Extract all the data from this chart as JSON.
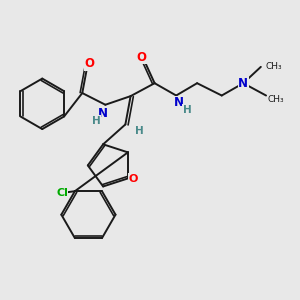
{
  "background_color": "#e8e8e8",
  "bond_color": "#1a1a1a",
  "nitrogen_color": "#0000cc",
  "oxygen_color": "#ff0000",
  "chlorine_color": "#00aa00",
  "h_color": "#4a8a8a",
  "figsize": [
    3.0,
    3.0
  ],
  "dpi": 100,
  "xlim": [
    0,
    10
  ],
  "ylim": [
    0,
    10
  ]
}
